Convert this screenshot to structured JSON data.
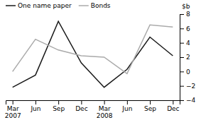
{
  "chart_data": {
    "type": "line",
    "categories": [
      "Mar\n2007",
      "Jun",
      "Sep",
      "Dec",
      "Mar\n2008",
      "Jun",
      "Sep",
      "Dec"
    ],
    "series": [
      {
        "name": "One name paper",
        "color": "#1a1a1a",
        "values": [
          -2.2,
          -0.5,
          7.0,
          1.2,
          -2.2,
          0.3,
          4.8,
          2.2
        ]
      },
      {
        "name": "Bonds",
        "color": "#aaaaaa",
        "values": [
          0.0,
          4.5,
          3.0,
          2.2,
          2.0,
          -0.3,
          6.5,
          6.2
        ]
      }
    ],
    "y_label": "$b",
    "ylim": [
      -4,
      8
    ],
    "yticks": [
      {
        "value": -4,
        "label": "−4"
      },
      {
        "value": -2,
        "label": "−2"
      },
      0,
      2,
      4,
      6,
      8
    ],
    "legend": "upper left",
    "grid": false
  }
}
